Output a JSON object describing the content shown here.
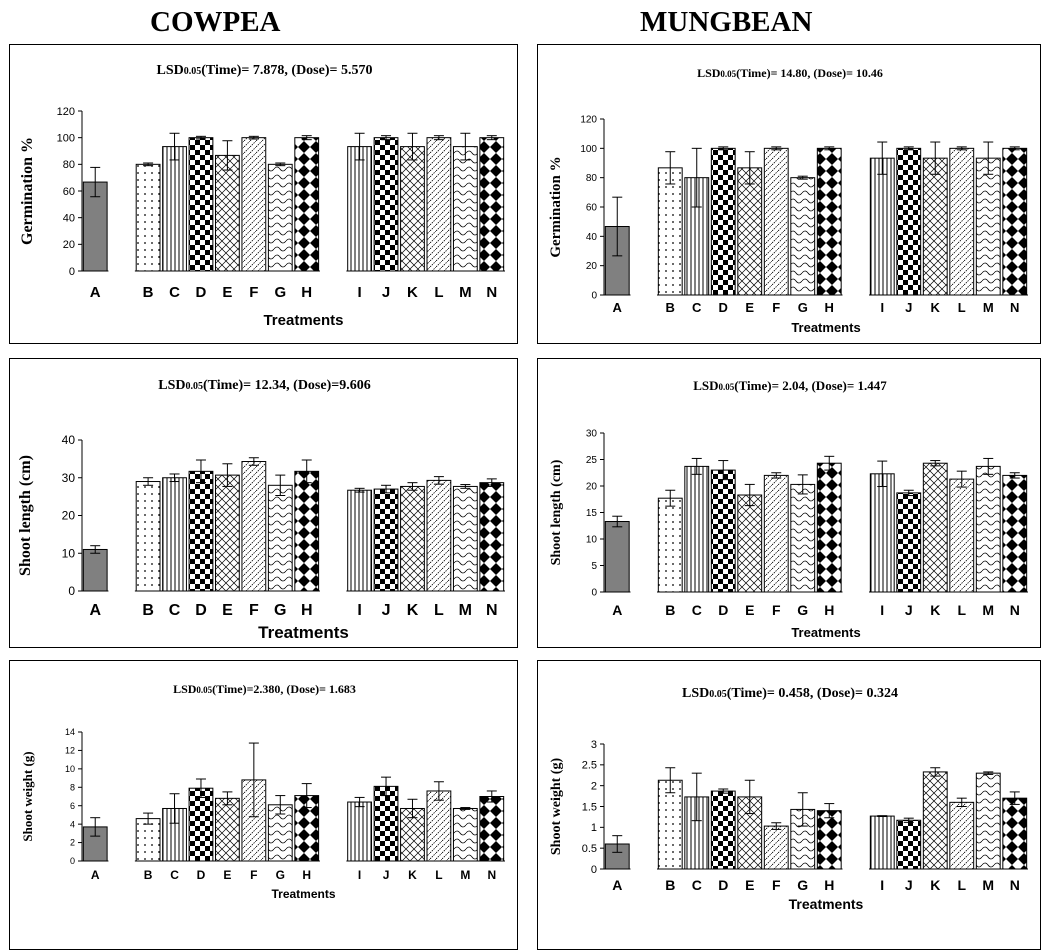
{
  "titles": {
    "left": "COWPEA",
    "right": "MUNGBEAN"
  },
  "chart_data": [
    {
      "id": "cowpea-germination",
      "crop": "COWPEA",
      "type": "bar",
      "title": "LSD0.05(Time)= 7.878, (Dose)= 5.570",
      "title_main": "LSD",
      "title_sub": "0.05",
      "title_rest": "(Time)= 7.878, (Dose)= 5.570",
      "ylabel": "Germination %",
      "xlabel": "Treatments",
      "ylim": [
        0,
        120
      ],
      "yticks": [
        0,
        20,
        40,
        60,
        80,
        100,
        120
      ],
      "categories": [
        "A",
        "B",
        "C",
        "D",
        "E",
        "F",
        "G",
        "H",
        "I",
        "J",
        "K",
        "L",
        "M",
        "N"
      ],
      "values": [
        66.7,
        80,
        93.3,
        100,
        86.7,
        100,
        80,
        100,
        93.3,
        100,
        93.3,
        100,
        93.3,
        100
      ],
      "errors": [
        11,
        1,
        10,
        1,
        11,
        1,
        1,
        1.5,
        10,
        1.5,
        10,
        1.5,
        10,
        1.5
      ]
    },
    {
      "id": "mungbean-germination",
      "crop": "MUNGBEAN",
      "type": "bar",
      "title": "LSD0.05(Time)= 14.80, (Dose)= 10.46",
      "title_main": "LSD",
      "title_sub": "0.05",
      "title_rest": "(Time)= 14.80, (Dose)= 10.46",
      "ylabel": "Germination %",
      "xlabel": "Treatments",
      "ylim": [
        0,
        120
      ],
      "yticks": [
        0,
        20,
        40,
        60,
        80,
        100,
        120
      ],
      "categories": [
        "A",
        "B",
        "C",
        "D",
        "E",
        "F",
        "G",
        "H",
        "I",
        "J",
        "K",
        "L",
        "M",
        "N"
      ],
      "values": [
        46.7,
        86.7,
        80,
        100,
        86.7,
        100,
        80,
        100,
        93.3,
        100,
        93.3,
        100,
        93.3,
        100
      ],
      "errors": [
        20,
        11,
        20,
        1,
        11,
        1,
        1,
        1,
        11,
        1,
        11,
        1,
        11,
        1
      ]
    },
    {
      "id": "cowpea-shoot-length",
      "crop": "COWPEA",
      "type": "bar",
      "title": "LSD0.05(Time)= 12.34, (Dose)=9.606",
      "title_main": "LSD",
      "title_sub": "0.05",
      "title_rest": "(Time)= 12.34, (Dose)=9.606",
      "ylabel": "Shoot length (cm)",
      "xlabel": "Treatments",
      "ylim": [
        0,
        40
      ],
      "yticks": [
        0,
        10,
        20,
        30,
        40
      ],
      "categories": [
        "A",
        "B",
        "C",
        "D",
        "E",
        "F",
        "G",
        "H",
        "I",
        "J",
        "K",
        "L",
        "M",
        "N"
      ],
      "values": [
        11,
        29,
        30,
        31.7,
        30.7,
        34.3,
        28,
        31.7,
        26.7,
        27,
        27.7,
        29.3,
        27.7,
        28.7
      ],
      "errors": [
        1,
        1,
        1,
        3,
        3,
        1,
        2.7,
        3,
        0.5,
        1,
        1,
        1,
        0.5,
        1
      ]
    },
    {
      "id": "mungbean-shoot-length",
      "crop": "MUNGBEAN",
      "type": "bar",
      "title": "LSD0.05(Time)= 2.04, (Dose)= 1.447",
      "title_main": "LSD",
      "title_sub": "0.05",
      "title_rest": "(Time)= 2.04, (Dose)= 1.447",
      "ylabel": "Shoot length (cm)",
      "xlabel": "Treatments",
      "ylim": [
        0,
        30
      ],
      "yticks": [
        0,
        5,
        10,
        15,
        20,
        25,
        30
      ],
      "categories": [
        "A",
        "B",
        "C",
        "D",
        "E",
        "F",
        "G",
        "H",
        "I",
        "J",
        "K",
        "L",
        "M",
        "N"
      ],
      "values": [
        13.3,
        17.7,
        23.7,
        23,
        18.3,
        22,
        20.3,
        24.3,
        22.3,
        18.7,
        24.3,
        21.3,
        23.7,
        22
      ],
      "errors": [
        1,
        1.5,
        1.5,
        1.8,
        2,
        0.5,
        1.8,
        1.3,
        2.4,
        0.5,
        0.5,
        1.5,
        1.5,
        0.5
      ]
    },
    {
      "id": "cowpea-shoot-weight",
      "crop": "COWPEA",
      "type": "bar",
      "title": "LSD0.05(Time)=2.380, (Dose)= 1.683",
      "title_main": "LSD",
      "title_sub": "0.05",
      "title_rest": "(Time)=2.380, (Dose)= 1.683",
      "ylabel": "Shoot weight (g)",
      "xlabel": "Treatments",
      "ylim": [
        0,
        14
      ],
      "yticks": [
        0,
        2,
        4,
        6,
        8,
        10,
        12,
        14
      ],
      "categories": [
        "A",
        "B",
        "C",
        "D",
        "E",
        "F",
        "G",
        "H",
        "I",
        "J",
        "K",
        "L",
        "M",
        "N"
      ],
      "values": [
        3.7,
        4.6,
        5.7,
        7.9,
        6.8,
        8.8,
        6.1,
        7.1,
        6.4,
        8.1,
        5.7,
        7.6,
        5.7,
        7
      ],
      "errors": [
        1,
        0.6,
        1.6,
        1,
        0.7,
        4,
        1,
        1.3,
        0.5,
        1,
        1,
        1,
        0.1,
        0.6
      ]
    },
    {
      "id": "mungbean-shoot-weight",
      "crop": "MUNGBEAN",
      "type": "bar",
      "title": "LSD0.05(Time)= 0.458, (Dose)= 0.324",
      "title_main": "LSD",
      "title_sub": "0.05",
      "title_rest": "(Time)= 0.458, (Dose)= 0.324",
      "ylabel": "Shoot weight (g)",
      "xlabel": "Treatments",
      "ylim": [
        0,
        3
      ],
      "yticks": [
        0,
        0.5,
        1,
        1.5,
        2,
        2.5,
        3
      ],
      "categories": [
        "A",
        "B",
        "C",
        "D",
        "E",
        "F",
        "G",
        "H",
        "I",
        "J",
        "K",
        "L",
        "M",
        "N"
      ],
      "values": [
        0.6,
        2.13,
        1.73,
        1.87,
        1.73,
        1.03,
        1.43,
        1.4,
        1.27,
        1.17,
        2.33,
        1.6,
        2.3,
        1.7
      ],
      "errors": [
        0.2,
        0.3,
        0.57,
        0.05,
        0.4,
        0.08,
        0.4,
        0.17,
        0.01,
        0.05,
        0.1,
        0.1,
        0.03,
        0.15
      ]
    }
  ]
}
